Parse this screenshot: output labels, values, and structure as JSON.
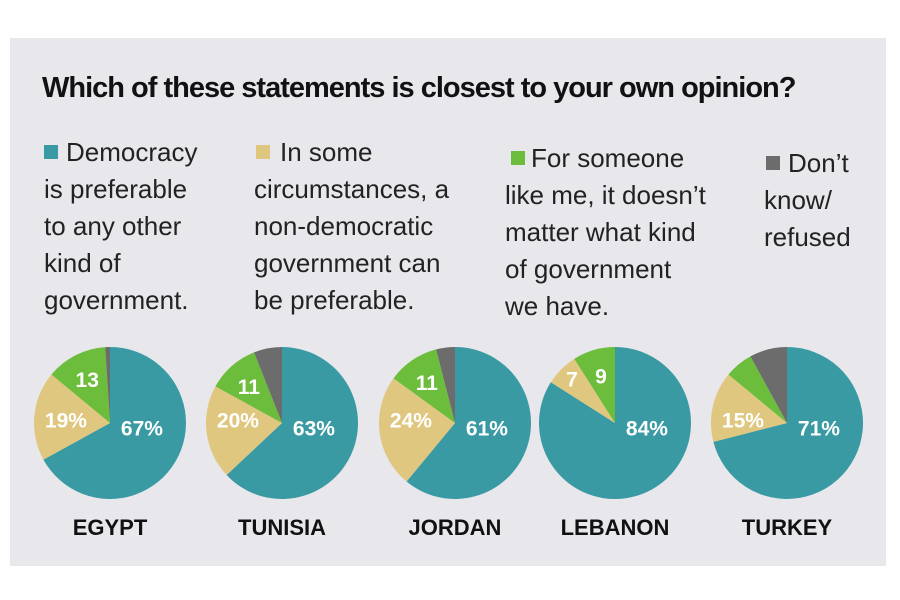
{
  "chart_data": {
    "type": "pie",
    "title": "Which of these statements is closest to your own opinion?",
    "series": [
      {
        "name": "Democracy is preferable to any other kind of government.",
        "color": "#3a9aa3"
      },
      {
        "name": "In some circumstances, a non-democratic government can be preferable.",
        "color": "#e0c77f"
      },
      {
        "name": "For someone like me, it doesn't matter what kind of government we have.",
        "color": "#6dbd3c"
      },
      {
        "name": "Don't know/ refused",
        "color": "#6c6c6c"
      }
    ],
    "pies": [
      {
        "country": "EGYPT",
        "values": [
          67,
          19,
          13,
          1
        ],
        "labels": [
          "67%",
          "19%",
          "13",
          ""
        ]
      },
      {
        "country": "TUNISIA",
        "values": [
          63,
          20,
          11,
          6
        ],
        "labels": [
          "63%",
          "20%",
          "11",
          ""
        ]
      },
      {
        "country": "JORDAN",
        "values": [
          61,
          24,
          11,
          4
        ],
        "labels": [
          "61%",
          "24%",
          "11",
          ""
        ]
      },
      {
        "country": "LEBANON",
        "values": [
          84,
          7,
          9,
          0
        ],
        "labels": [
          "84%",
          "7",
          "9",
          ""
        ]
      },
      {
        "country": "TURKEY",
        "values": [
          71,
          15,
          6,
          8
        ],
        "labels": [
          "71%",
          "15%",
          "",
          ""
        ]
      }
    ]
  },
  "legend": [
    {
      "text": "Democracy\nis preferable\nto any other\nkind of\ngovernment."
    },
    {
      "text": "In some\ncircumstances, a\nnon-democratic\ngovernment can\nbe preferable."
    },
    {
      "text": "For someone\nlike me, it doesn’t\nmatter what kind\nof government\nwe have."
    },
    {
      "text": "Don’t\nknow/\nrefused"
    }
  ]
}
